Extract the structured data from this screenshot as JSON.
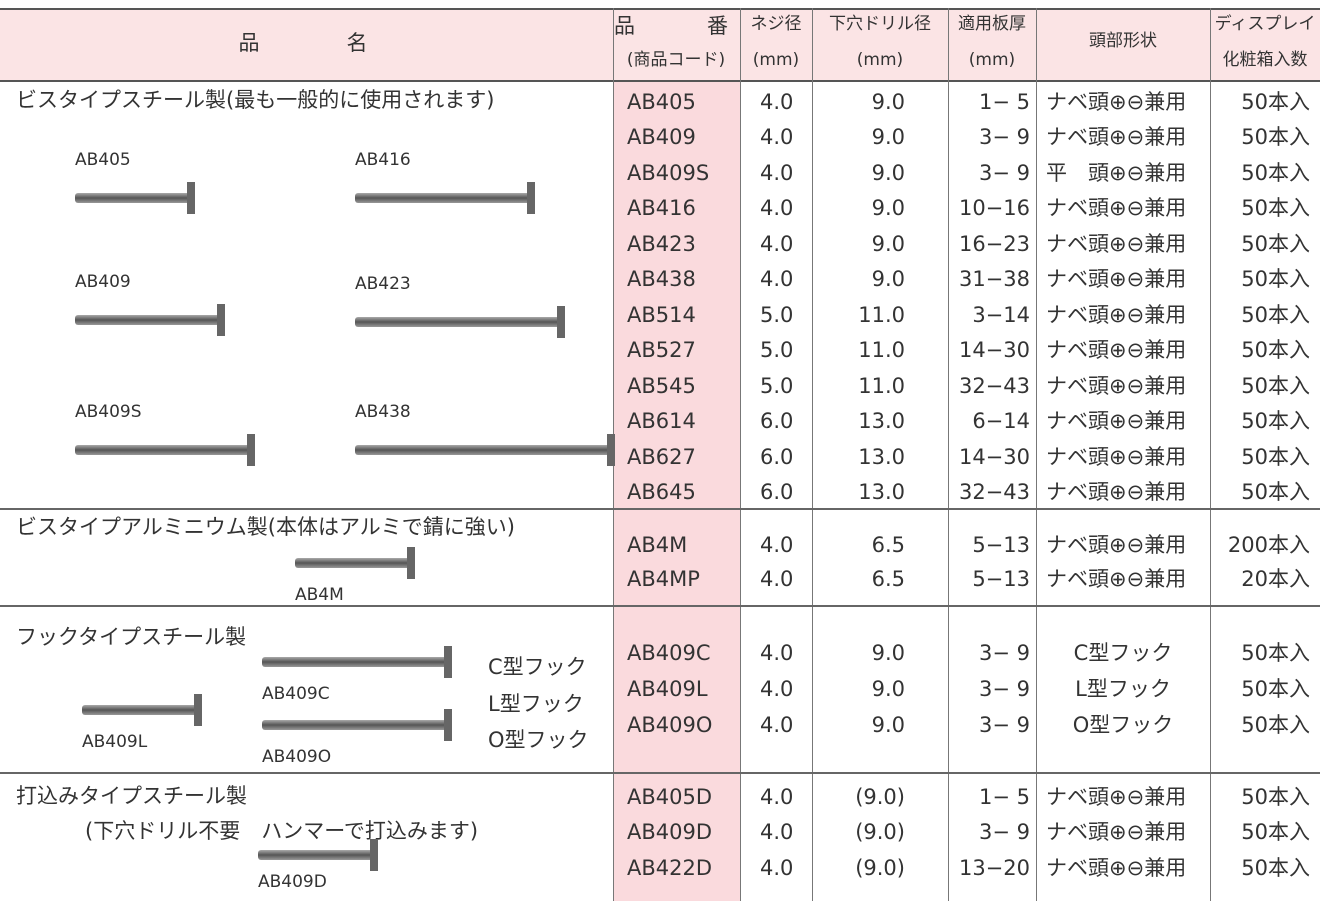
{
  "header": {
    "name": "品　　　名",
    "code": "品　　番",
    "code_sub": "(商品コード)",
    "screw": "ネジ径",
    "screw_unit": "(mm)",
    "drill": "下穴ドリル径",
    "drill_unit": "(mm)",
    "thickness": "適用板厚",
    "thickness_unit": "(mm)",
    "head": "頭部形状",
    "qty": "ディスプレイ",
    "qty_sub": "化粧箱入数"
  },
  "sections": [
    {
      "title": "ビスタイプスチール製(最も一般的に使用されます)",
      "images": [
        "AB405",
        "AB416",
        "AB409",
        "AB423",
        "AB409S",
        "AB438"
      ],
      "rows": [
        [
          "AB405",
          "4.0",
          "9.0",
          "1− 5",
          "ナベ頭⊕⊖兼用",
          "50本入"
        ],
        [
          "AB409",
          "4.0",
          "9.0",
          "3− 9",
          "ナベ頭⊕⊖兼用",
          "50本入"
        ],
        [
          "AB409S",
          "4.0",
          "9.0",
          "3− 9",
          "平　頭⊕⊖兼用",
          "50本入"
        ],
        [
          "AB416",
          "4.0",
          "9.0",
          "10−16",
          "ナベ頭⊕⊖兼用",
          "50本入"
        ],
        [
          "AB423",
          "4.0",
          "9.0",
          "16−23",
          "ナベ頭⊕⊖兼用",
          "50本入"
        ],
        [
          "AB438",
          "4.0",
          "9.0",
          "31−38",
          "ナベ頭⊕⊖兼用",
          "50本入"
        ],
        [
          "AB514",
          "5.0",
          "11.0",
          "3−14",
          "ナベ頭⊕⊖兼用",
          "50本入"
        ],
        [
          "AB527",
          "5.0",
          "11.0",
          "14−30",
          "ナベ頭⊕⊖兼用",
          "50本入"
        ],
        [
          "AB545",
          "5.0",
          "11.0",
          "32−43",
          "ナベ頭⊕⊖兼用",
          "50本入"
        ],
        [
          "AB614",
          "6.0",
          "13.0",
          "6−14",
          "ナベ頭⊕⊖兼用",
          "50本入"
        ],
        [
          "AB627",
          "6.0",
          "13.0",
          "14−30",
          "ナベ頭⊕⊖兼用",
          "50本入"
        ],
        [
          "AB645",
          "6.0",
          "13.0",
          "32−43",
          "ナベ頭⊕⊖兼用",
          "50本入"
        ]
      ]
    },
    {
      "title": "ビスタイプアルミニウム製(本体はアルミで錆に強い)",
      "images": [
        "AB4M"
      ],
      "rows": [
        [
          "AB4M",
          "4.0",
          "6.5",
          "5−13",
          "ナベ頭⊕⊖兼用",
          "200本入"
        ],
        [
          "AB4MP",
          "4.0",
          "6.5",
          "5−13",
          "ナベ頭⊕⊖兼用",
          "20本入"
        ]
      ]
    },
    {
      "title": "フックタイプスチール製",
      "images": [
        "AB409C",
        "AB409L",
        "AB409O"
      ],
      "hooks": [
        "C型フック",
        "L型フック",
        "O型フック"
      ],
      "rows": [
        [
          "AB409C",
          "4.0",
          "9.0",
          "3− 9",
          "C型フック",
          "50本入"
        ],
        [
          "AB409L",
          "4.0",
          "9.0",
          "3− 9",
          "L型フック",
          "50本入"
        ],
        [
          "AB409O",
          "4.0",
          "9.0",
          "3− 9",
          "O型フック",
          "50本入"
        ]
      ]
    },
    {
      "title": "打込みタイプスチール製",
      "note": "(下穴ドリル不要　ハンマーで打込みます)",
      "images": [
        "AB409D"
      ],
      "rows": [
        [
          "AB405D",
          "4.0",
          "(9.0)",
          "1− 5",
          "ナベ頭⊕⊖兼用",
          "50本入"
        ],
        [
          "AB409D",
          "4.0",
          "(9.0)",
          "3− 9",
          "ナベ頭⊕⊖兼用",
          "50本入"
        ],
        [
          "AB422D",
          "4.0",
          "(9.0)",
          "13−20",
          "ナベ頭⊕⊖兼用",
          "50本入"
        ]
      ]
    }
  ]
}
